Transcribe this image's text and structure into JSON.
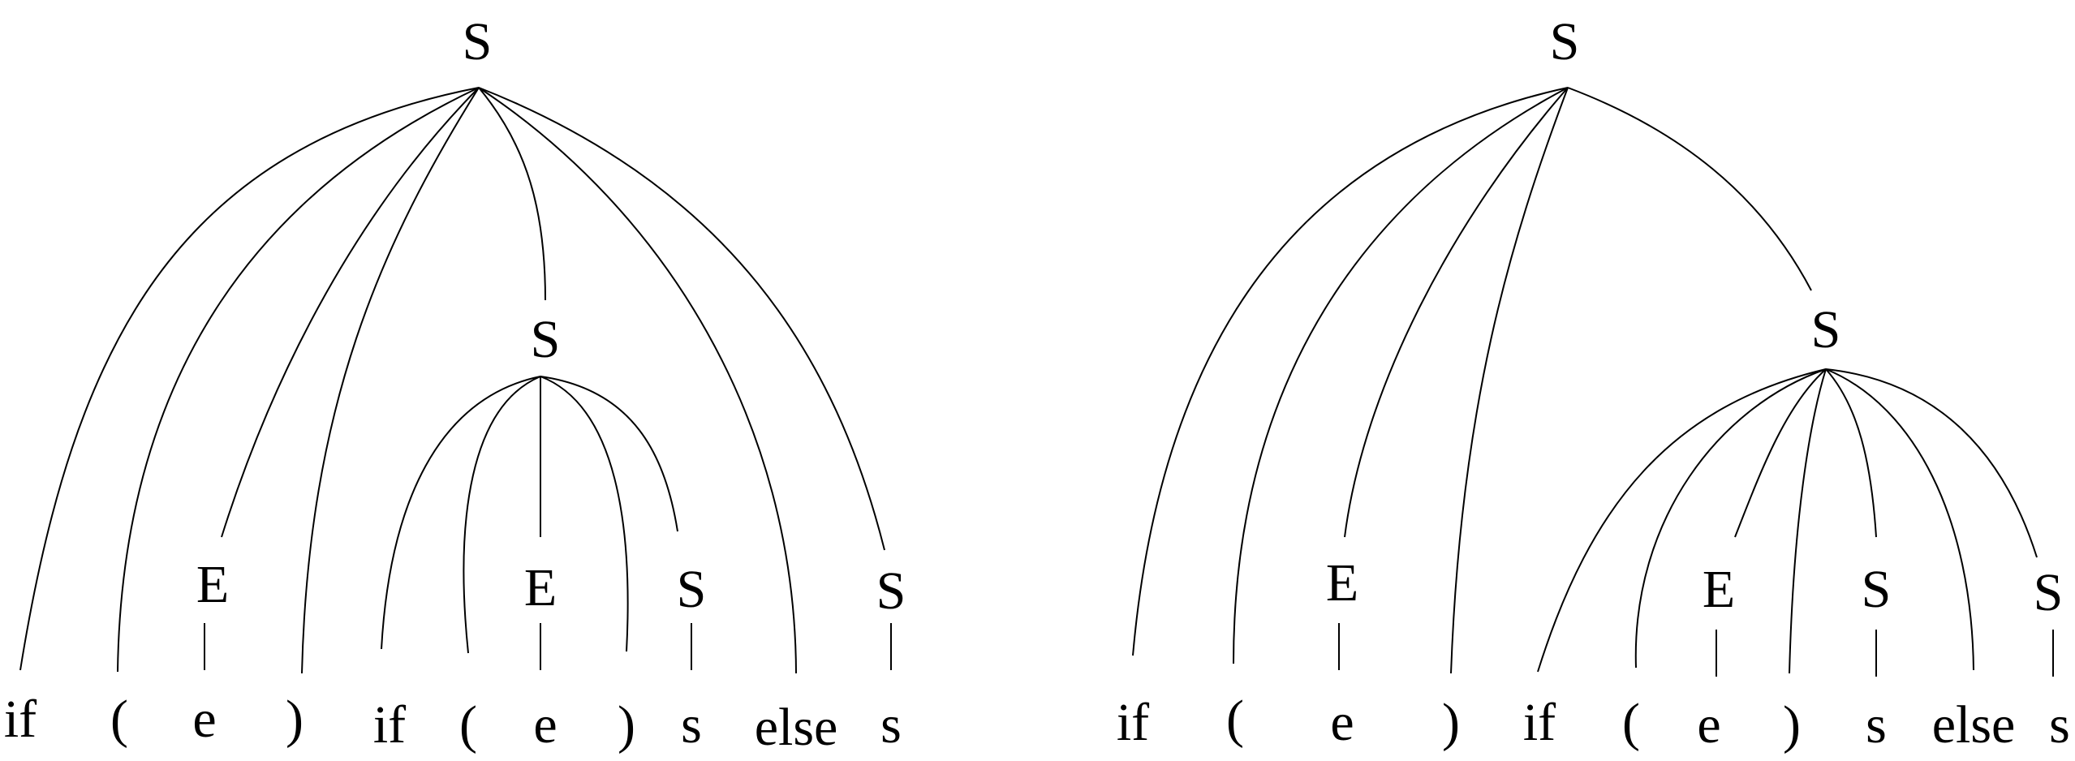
{
  "trees": [
    {
      "name": "left-parse-tree",
      "root": "S",
      "inner": "S",
      "nonterminals": [
        "E",
        "E",
        "S",
        "S"
      ],
      "tokens": [
        "if",
        "(",
        "e",
        ")",
        "if",
        "(",
        "e",
        ")",
        "s",
        "else",
        "s"
      ]
    },
    {
      "name": "right-parse-tree",
      "root": "S",
      "inner": "S",
      "nonterminals": [
        "E",
        "E",
        "S",
        "S"
      ],
      "tokens": [
        "if",
        "(",
        "e",
        ")",
        "if",
        "(",
        "e",
        ")",
        "s",
        "else",
        "s"
      ]
    }
  ]
}
